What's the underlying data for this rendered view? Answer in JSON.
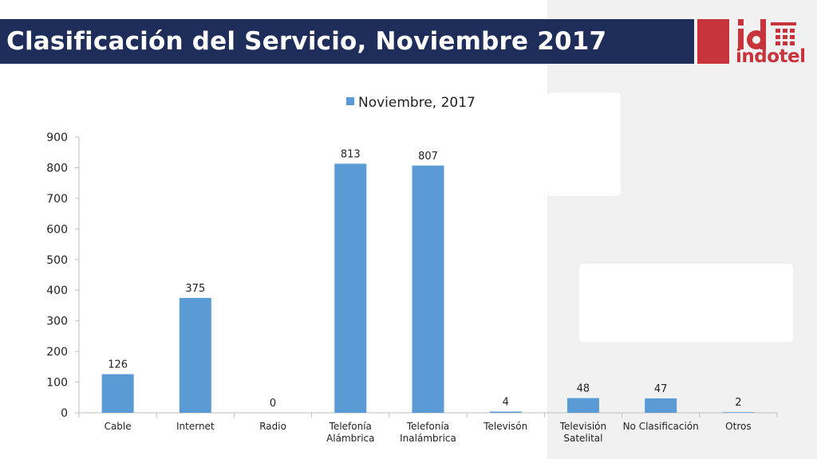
{
  "header": {
    "title": "Clasificación del Servicio, Noviembre 2017",
    "logo_mark": "id",
    "logo_text": "indotel",
    "colors": {
      "title_bar": "#1f2d5a",
      "brand_red": "#c8343b"
    }
  },
  "chart_data": {
    "type": "bar",
    "categories": [
      [
        "Cable"
      ],
      [
        "Internet"
      ],
      [
        "Radio"
      ],
      [
        "Telefonía",
        "Alámbrica"
      ],
      [
        "Telefonía",
        "Inalámbrica"
      ],
      [
        "Televisón"
      ],
      [
        "Televisión",
        "Satelital"
      ],
      [
        "No Clasificación"
      ],
      [
        "Otros"
      ]
    ],
    "series": [
      {
        "name": "Noviembre, 2017",
        "values": [
          126,
          375,
          0,
          813,
          807,
          4,
          48,
          47,
          2
        ]
      }
    ],
    "ylim": [
      0,
      900
    ],
    "yticks": [
      "0",
      "100",
      "200",
      "300",
      "400",
      "500",
      "600",
      "700",
      "800",
      "900"
    ],
    "legend_position": "top",
    "bar_color": "#5b9bd5",
    "grid": false
  }
}
